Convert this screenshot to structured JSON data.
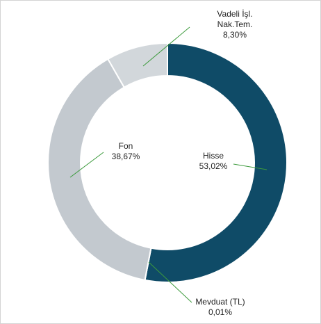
{
  "chart_data": {
    "type": "donut",
    "categories": [
      "Hisse",
      "Mevduat (TL)",
      "Fon",
      "Vadeli İşl. Nak.Tem."
    ],
    "values": [
      53.02,
      0.01,
      38.67,
      8.3
    ],
    "value_labels": [
      "53,02%",
      "0,01%",
      "38,67%",
      "8,30%"
    ],
    "colors": [
      "#0f4b67",
      "#c3c9cf",
      "#c3c9cf",
      "#d2d7db"
    ]
  }
}
